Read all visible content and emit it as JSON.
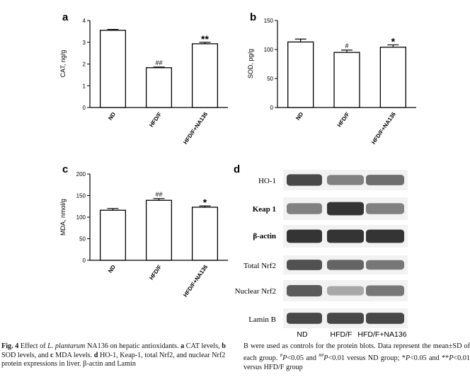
{
  "figure": {
    "panels": {
      "a": {
        "letter": "a"
      },
      "b": {
        "letter": "b"
      },
      "c": {
        "letter": "c"
      },
      "d": {
        "letter": "d"
      }
    },
    "blot": {
      "rows": [
        {
          "label": "HO-1",
          "intensity": [
            0.85,
            0.55,
            0.65
          ]
        },
        {
          "label": "Keap 1",
          "intensity": [
            0.55,
            0.95,
            0.55
          ]
        },
        {
          "label": "β-actin",
          "intensity": [
            0.95,
            0.95,
            0.95
          ]
        },
        {
          "label": "Total Nrf2",
          "intensity": [
            0.8,
            0.7,
            0.6
          ]
        },
        {
          "label": "Nuclear Nrf2",
          "intensity": [
            0.75,
            0.35,
            0.6
          ]
        },
        {
          "label": "Lamin B",
          "intensity": [
            0.85,
            0.85,
            0.85
          ]
        }
      ],
      "lanes": [
        "ND",
        "HFD/F",
        "HFD/F+NA136"
      ]
    },
    "caption": {
      "fig_label": "Fig. 4",
      "left_parts": [
        {
          "t": "Effect of ",
          "s": "n"
        },
        {
          "t": "L. plantarum",
          "s": "i"
        },
        {
          "t": " NA136 on hepatic antioxidants. ",
          "s": "n"
        },
        {
          "t": "a",
          "s": "b"
        },
        {
          "t": " CAT levels, ",
          "s": "n"
        },
        {
          "t": "b",
          "s": "b"
        },
        {
          "t": " SOD levels, and ",
          "s": "n"
        },
        {
          "t": "c",
          "s": "b"
        },
        {
          "t": " MDA levels. ",
          "s": "n"
        },
        {
          "t": "d",
          "s": "b"
        },
        {
          "t": " HO-1, Keap-1, total Nrf2, and nuclear Nrf2 protein expressions in liver. β-actin and Lamin",
          "s": "n"
        }
      ],
      "right_parts": [
        {
          "t": "B were used as controls for the protein blots. Data represent the mean±SD of each group. ",
          "s": "n"
        },
        {
          "t": "#",
          "s": "sup"
        },
        {
          "t": "P",
          "s": "i"
        },
        {
          "t": "<0.05 and ",
          "s": "n"
        },
        {
          "t": "##",
          "s": "sup"
        },
        {
          "t": "P",
          "s": "i"
        },
        {
          "t": "<0.01 versus ND group; *",
          "s": "n"
        },
        {
          "t": "P",
          "s": "i"
        },
        {
          "t": "<0.05 and **",
          "s": "n"
        },
        {
          "t": "P",
          "s": "i"
        },
        {
          "t": "<0.01 versus HFD/F group",
          "s": "n"
        }
      ]
    }
  },
  "chart_data": [
    {
      "id": "a",
      "type": "bar",
      "categories": [
        "ND",
        "HFD/F",
        "HFD/F+NA136"
      ],
      "values": [
        3.55,
        1.83,
        2.93
      ],
      "errors": [
        0.04,
        0.03,
        0.07
      ],
      "annotations": [
        "",
        "##",
        "**"
      ],
      "ylabel": "CAT, ng/g",
      "ylim": [
        0,
        4
      ],
      "yticks": [
        0,
        1,
        2,
        3,
        4
      ],
      "tick_labels": [
        "0",
        "1",
        "2",
        "3",
        "4"
      ]
    },
    {
      "id": "b",
      "type": "bar",
      "categories": [
        "ND",
        "HFD/F",
        "HFD/F+NA136"
      ],
      "values": [
        113,
        95,
        104
      ],
      "errors": [
        5,
        4,
        4
      ],
      "annotations": [
        "",
        "#",
        "*"
      ],
      "ylabel": "SOD, pg/g",
      "ylim": [
        0,
        150
      ],
      "yticks": [
        0,
        50,
        100,
        150
      ],
      "tick_labels": [
        "0",
        "50",
        "100",
        "150"
      ]
    },
    {
      "id": "c",
      "type": "bar",
      "categories": [
        "ND",
        "HFD/F",
        "HFD/F+NA136"
      ],
      "values": [
        116,
        139,
        123
      ],
      "errors": [
        4,
        4,
        3
      ],
      "annotations": [
        "",
        "##",
        "*"
      ],
      "ylabel": "MDA, nmol/g",
      "ylim": [
        0,
        200
      ],
      "yticks": [
        0,
        50,
        100,
        150,
        200
      ],
      "tick_labels": [
        "0",
        "50",
        "100",
        "150",
        "200"
      ]
    }
  ]
}
